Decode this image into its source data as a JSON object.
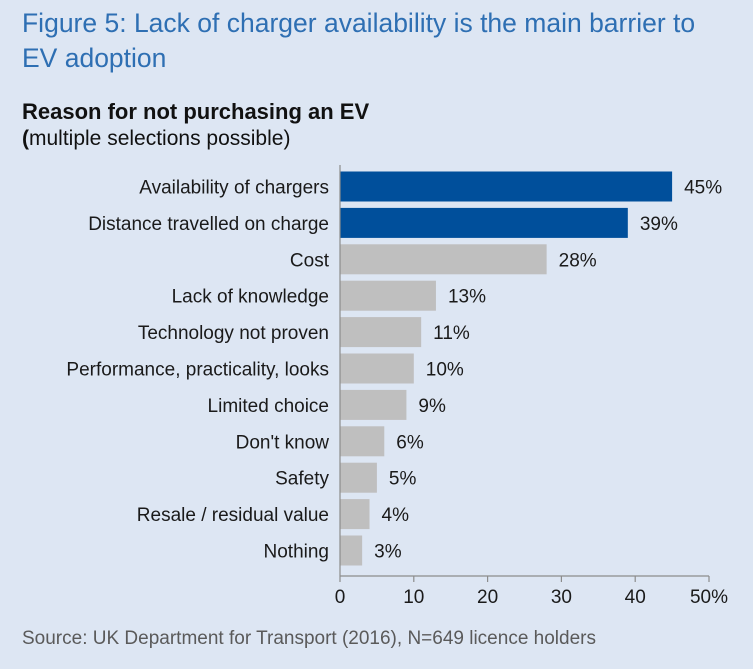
{
  "figure": {
    "title": "Figure 5: Lack of charger availability is the main barrier to EV adoption",
    "subtitle": "Reason for not purchasing an EV",
    "note_open": "(",
    "note_rest": "multiple selections possible)",
    "source": "Source: UK Department for Transport (2016), N=649 licence holders"
  },
  "colors": {
    "highlight": "#004f9b",
    "normal": "#bfbfbf",
    "axis": "#8c8c8c",
    "text": "#1a1a1a"
  },
  "chart_data": {
    "type": "bar",
    "orientation": "horizontal",
    "title": "Reason for not purchasing an EV",
    "xlabel": "",
    "ylabel": "",
    "xlim": [
      0,
      50
    ],
    "xticks": [
      0,
      10,
      20,
      30,
      40,
      50
    ],
    "xtick_labels": [
      "0",
      "10",
      "20",
      "30",
      "40",
      "50%"
    ],
    "grid": false,
    "categories": [
      "Availability of chargers",
      "Distance travelled on charge",
      "Cost",
      "Lack of knowledge",
      "Technology not proven",
      "Performance, practicality, looks",
      "Limited choice",
      "Don't know",
      "Safety",
      "Resale / residual value",
      "Nothing"
    ],
    "values": [
      45,
      39,
      28,
      13,
      11,
      10,
      9,
      6,
      5,
      4,
      3
    ],
    "value_labels": [
      "45%",
      "39%",
      "28%",
      "13%",
      "11%",
      "10%",
      "9%",
      "6%",
      "5%",
      "4%",
      "3%"
    ],
    "highlighted": [
      true,
      true,
      false,
      false,
      false,
      false,
      false,
      false,
      false,
      false,
      false
    ]
  }
}
